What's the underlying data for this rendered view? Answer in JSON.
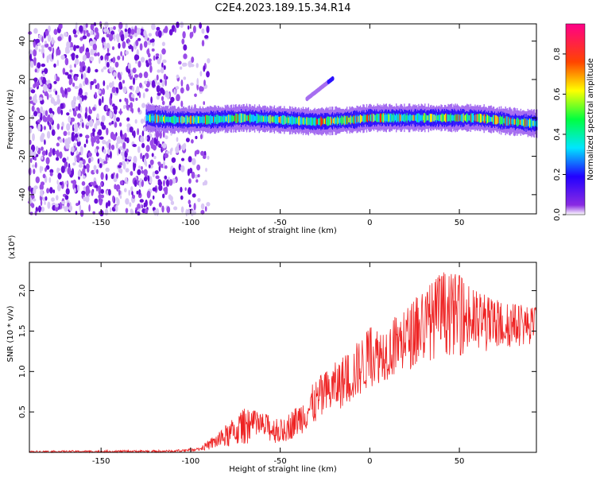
{
  "title": "C2E4.2023.189.15.34.R14",
  "colors": {
    "axis": "#000000",
    "snr_line": "#ee2222",
    "background": "#ffffff"
  },
  "chart_data": [
    {
      "type": "heatmap",
      "xlabel": "Height of straight line (km)",
      "ylabel": "Frequency (Hz)",
      "xlim": [
        -190,
        93
      ],
      "ylim": [
        -50,
        49
      ],
      "xticks": [
        -150,
        -100,
        -50,
        0,
        50
      ],
      "yticks": [
        -40,
        -20,
        0,
        20,
        40
      ],
      "colorbar": {
        "label": "Normalized spectral amplitude",
        "range": [
          0.0,
          0.95
        ],
        "ticks": [
          0.0,
          0.2,
          0.4,
          0.6,
          0.8
        ]
      },
      "ridge_center_hz": [
        {
          "x": -125,
          "y": 0
        },
        {
          "x": -110,
          "y": -1
        },
        {
          "x": -90,
          "y": -1
        },
        {
          "x": -70,
          "y": 0
        },
        {
          "x": -50,
          "y": -1
        },
        {
          "x": -30,
          "y": -2
        },
        {
          "x": -10,
          "y": -1
        },
        {
          "x": 0,
          "y": 0
        },
        {
          "x": 20,
          "y": 0
        },
        {
          "x": 40,
          "y": 0
        },
        {
          "x": 60,
          "y": 0
        },
        {
          "x": 80,
          "y": -2
        },
        {
          "x": 93,
          "y": -3
        }
      ],
      "noise_region_km": [
        -190,
        -90
      ],
      "side_feature": [
        {
          "x": -35,
          "y": 10
        },
        {
          "x": -20,
          "y": 21
        }
      ]
    },
    {
      "type": "line",
      "xlabel": "Height of straight line (km)",
      "ylabel": "SNR (10 * v/v)",
      "y_multiplier": "(x10⁴)",
      "xlim": [
        -190,
        93
      ],
      "ylim": [
        0,
        2.35
      ],
      "xticks": [
        -150,
        -100,
        -50,
        0,
        50
      ],
      "yticks": [
        0.5,
        1.0,
        1.5,
        2.0
      ],
      "series": [
        {
          "envelope": [
            {
              "x": -190,
              "lo": 0.0,
              "hi": 0.02
            },
            {
              "x": -110,
              "lo": 0.0,
              "hi": 0.03
            },
            {
              "x": -95,
              "lo": 0.02,
              "hi": 0.06
            },
            {
              "x": -80,
              "lo": 0.05,
              "hi": 0.35
            },
            {
              "x": -70,
              "lo": 0.1,
              "hi": 0.55
            },
            {
              "x": -60,
              "lo": 0.15,
              "hi": 0.5
            },
            {
              "x": -50,
              "lo": 0.1,
              "hi": 0.4
            },
            {
              "x": -40,
              "lo": 0.2,
              "hi": 0.6
            },
            {
              "x": -30,
              "lo": 0.35,
              "hi": 0.9
            },
            {
              "x": -20,
              "lo": 0.5,
              "hi": 1.1
            },
            {
              "x": -10,
              "lo": 0.6,
              "hi": 1.3
            },
            {
              "x": 0,
              "lo": 0.8,
              "hi": 1.55
            },
            {
              "x": 10,
              "lo": 0.9,
              "hi": 1.6
            },
            {
              "x": 20,
              "lo": 1.0,
              "hi": 1.8
            },
            {
              "x": 30,
              "lo": 1.1,
              "hi": 2.0
            },
            {
              "x": 40,
              "lo": 1.2,
              "hi": 2.25
            },
            {
              "x": 50,
              "lo": 1.2,
              "hi": 2.2
            },
            {
              "x": 60,
              "lo": 1.2,
              "hi": 2.0
            },
            {
              "x": 70,
              "lo": 1.25,
              "hi": 1.9
            },
            {
              "x": 80,
              "lo": 1.3,
              "hi": 1.85
            },
            {
              "x": 93,
              "lo": 1.35,
              "hi": 1.8
            }
          ]
        }
      ]
    }
  ]
}
